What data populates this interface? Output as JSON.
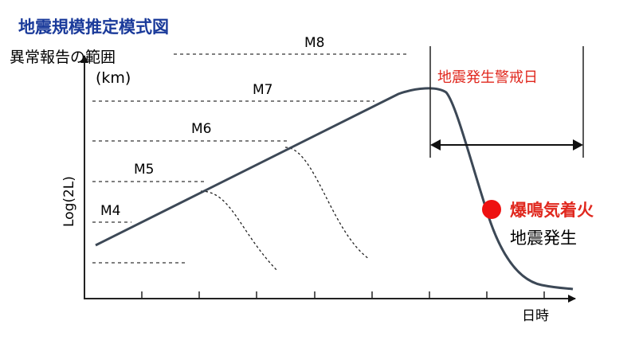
{
  "title": "地震規模推定模式図",
  "subtitle": "異常報告の範囲",
  "unit": "(km)",
  "y_axis_label": "Log(2L)",
  "x_axis_label": "日時",
  "magnitude_labels": [
    "M8",
    "M7",
    "M6",
    "M5",
    "M4"
  ],
  "warning_label": "地震発生警戒日",
  "event_label": "爆鳴気着火",
  "event_label2": "地震発生",
  "colors": {
    "title": "#1a3a9a",
    "warning": "#e0281e",
    "event_dot": "#ee1111",
    "curve": "#3c4856",
    "axis": "#222222"
  }
}
